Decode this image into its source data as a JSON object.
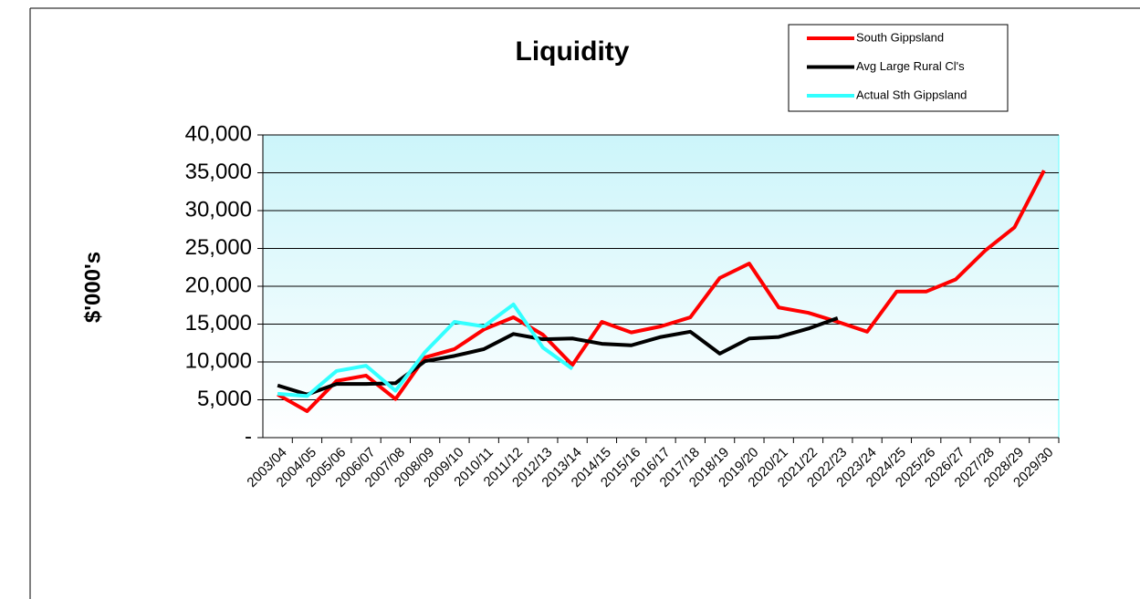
{
  "chart_data": {
    "type": "line",
    "title": "Liquidity",
    "y_label": "$'000's",
    "categories": [
      "2003/04",
      "2004/05",
      "2005/06",
      "2006/07",
      "2007/08",
      "2008/09",
      "2009/10",
      "2010/11",
      "2011/12",
      "2012/13",
      "2013/14",
      "2014/15",
      "2015/16",
      "2016/17",
      "2017/18",
      "2018/19",
      "2019/20",
      "2020/21",
      "2021/22",
      "2022/23",
      "2023/24",
      "2024/25",
      "2025/26",
      "2026/27",
      "2027/28",
      "2028/29",
      "2029/30"
    ],
    "series": [
      {
        "name": "South Gippsland",
        "color": "#ff0000",
        "values": [
          5700,
          3500,
          7500,
          8200,
          5100,
          10600,
          11700,
          14300,
          15900,
          13600,
          9600,
          15300,
          13900,
          14700,
          15900,
          21100,
          23000,
          17200,
          16500,
          15300,
          14000,
          19300,
          19300,
          20900,
          24700,
          27800,
          35300
        ]
      },
      {
        "name": "Avg Large Rural Cl's",
        "color": "#000000",
        "values": [
          6900,
          5700,
          7100,
          7100,
          7200,
          10100,
          10800,
          11700,
          13700,
          13000,
          13100,
          12400,
          12200,
          13300,
          14000,
          11100,
          13100,
          13300,
          14400,
          15800,
          null,
          null,
          null,
          null,
          null,
          null,
          null
        ]
      },
      {
        "name": "Actual Sth Gippsland",
        "color": "#33ffff",
        "values": [
          5800,
          5500,
          8800,
          9500,
          6200,
          11300,
          15300,
          14700,
          17600,
          11900,
          9100,
          null,
          null,
          null,
          null,
          null,
          null,
          null,
          null,
          null,
          null,
          null,
          null,
          null,
          null,
          null,
          null
        ]
      }
    ],
    "ylim": [
      0,
      40000
    ],
    "yticks": [
      {
        "value": 0,
        "label": "-"
      },
      {
        "value": 5000,
        "label": "5,000"
      },
      {
        "value": 10000,
        "label": "10,000"
      },
      {
        "value": 15000,
        "label": "15,000"
      },
      {
        "value": 20000,
        "label": "20,000"
      },
      {
        "value": 25000,
        "label": "25,000"
      },
      {
        "value": 30000,
        "label": "30,000"
      },
      {
        "value": 35000,
        "label": "35,000"
      },
      {
        "value": 40000,
        "label": "40,000"
      }
    ],
    "grid": true,
    "legend": "upper right"
  }
}
